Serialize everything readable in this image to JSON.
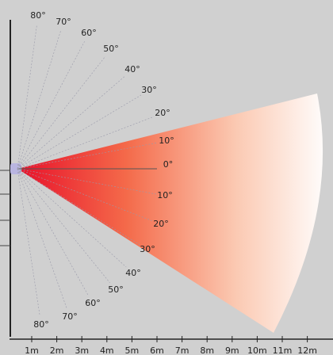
{
  "angle_labels": {
    "upper": [
      "80°",
      "70°",
      "60°",
      "50°",
      "40°",
      "30°",
      "20°",
      "10°"
    ],
    "center": "0°",
    "lower": [
      "10°",
      "20°",
      "30°",
      "40°",
      "50°",
      "60°",
      "70°",
      "80°"
    ]
  },
  "distance_labels": [
    "1m",
    "2m",
    "3m",
    "4m",
    "5m",
    "6m",
    "7m",
    "8m",
    "9m",
    "10m",
    "11m",
    "12m"
  ]
}
